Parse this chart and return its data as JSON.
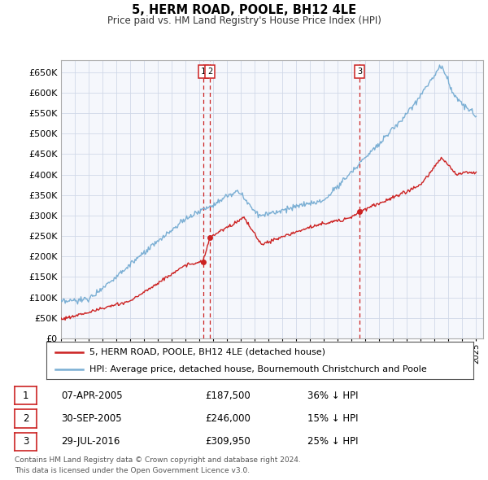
{
  "title": "5, HERM ROAD, POOLE, BH12 4LE",
  "subtitle": "Price paid vs. HM Land Registry's House Price Index (HPI)",
  "ylim": [
    0,
    680000
  ],
  "yticks": [
    0,
    50000,
    100000,
    150000,
    200000,
    250000,
    300000,
    350000,
    400000,
    450000,
    500000,
    550000,
    600000,
    650000
  ],
  "hpi_color": "#7bafd4",
  "price_color": "#cc2222",
  "grid_color": "#d0d8e8",
  "bg_color": "#f5f7fc",
  "transactions": [
    {
      "label": "1",
      "date_num": 2005.27,
      "price": 187500
    },
    {
      "label": "2",
      "date_num": 2005.75,
      "price": 246000
    },
    {
      "label": "3",
      "date_num": 2016.57,
      "price": 309950
    }
  ],
  "legend_entries": [
    "5, HERM ROAD, POOLE, BH12 4LE (detached house)",
    "HPI: Average price, detached house, Bournemouth Christchurch and Poole"
  ],
  "table_rows": [
    [
      "1",
      "07-APR-2005",
      "£187,500",
      "36% ↓ HPI"
    ],
    [
      "2",
      "30-SEP-2005",
      "£246,000",
      "15% ↓ HPI"
    ],
    [
      "3",
      "29-JUL-2016",
      "£309,950",
      "25% ↓ HPI"
    ]
  ],
  "footnote1": "Contains HM Land Registry data © Crown copyright and database right 2024.",
  "footnote2": "This data is licensed under the Open Government Licence v3.0."
}
